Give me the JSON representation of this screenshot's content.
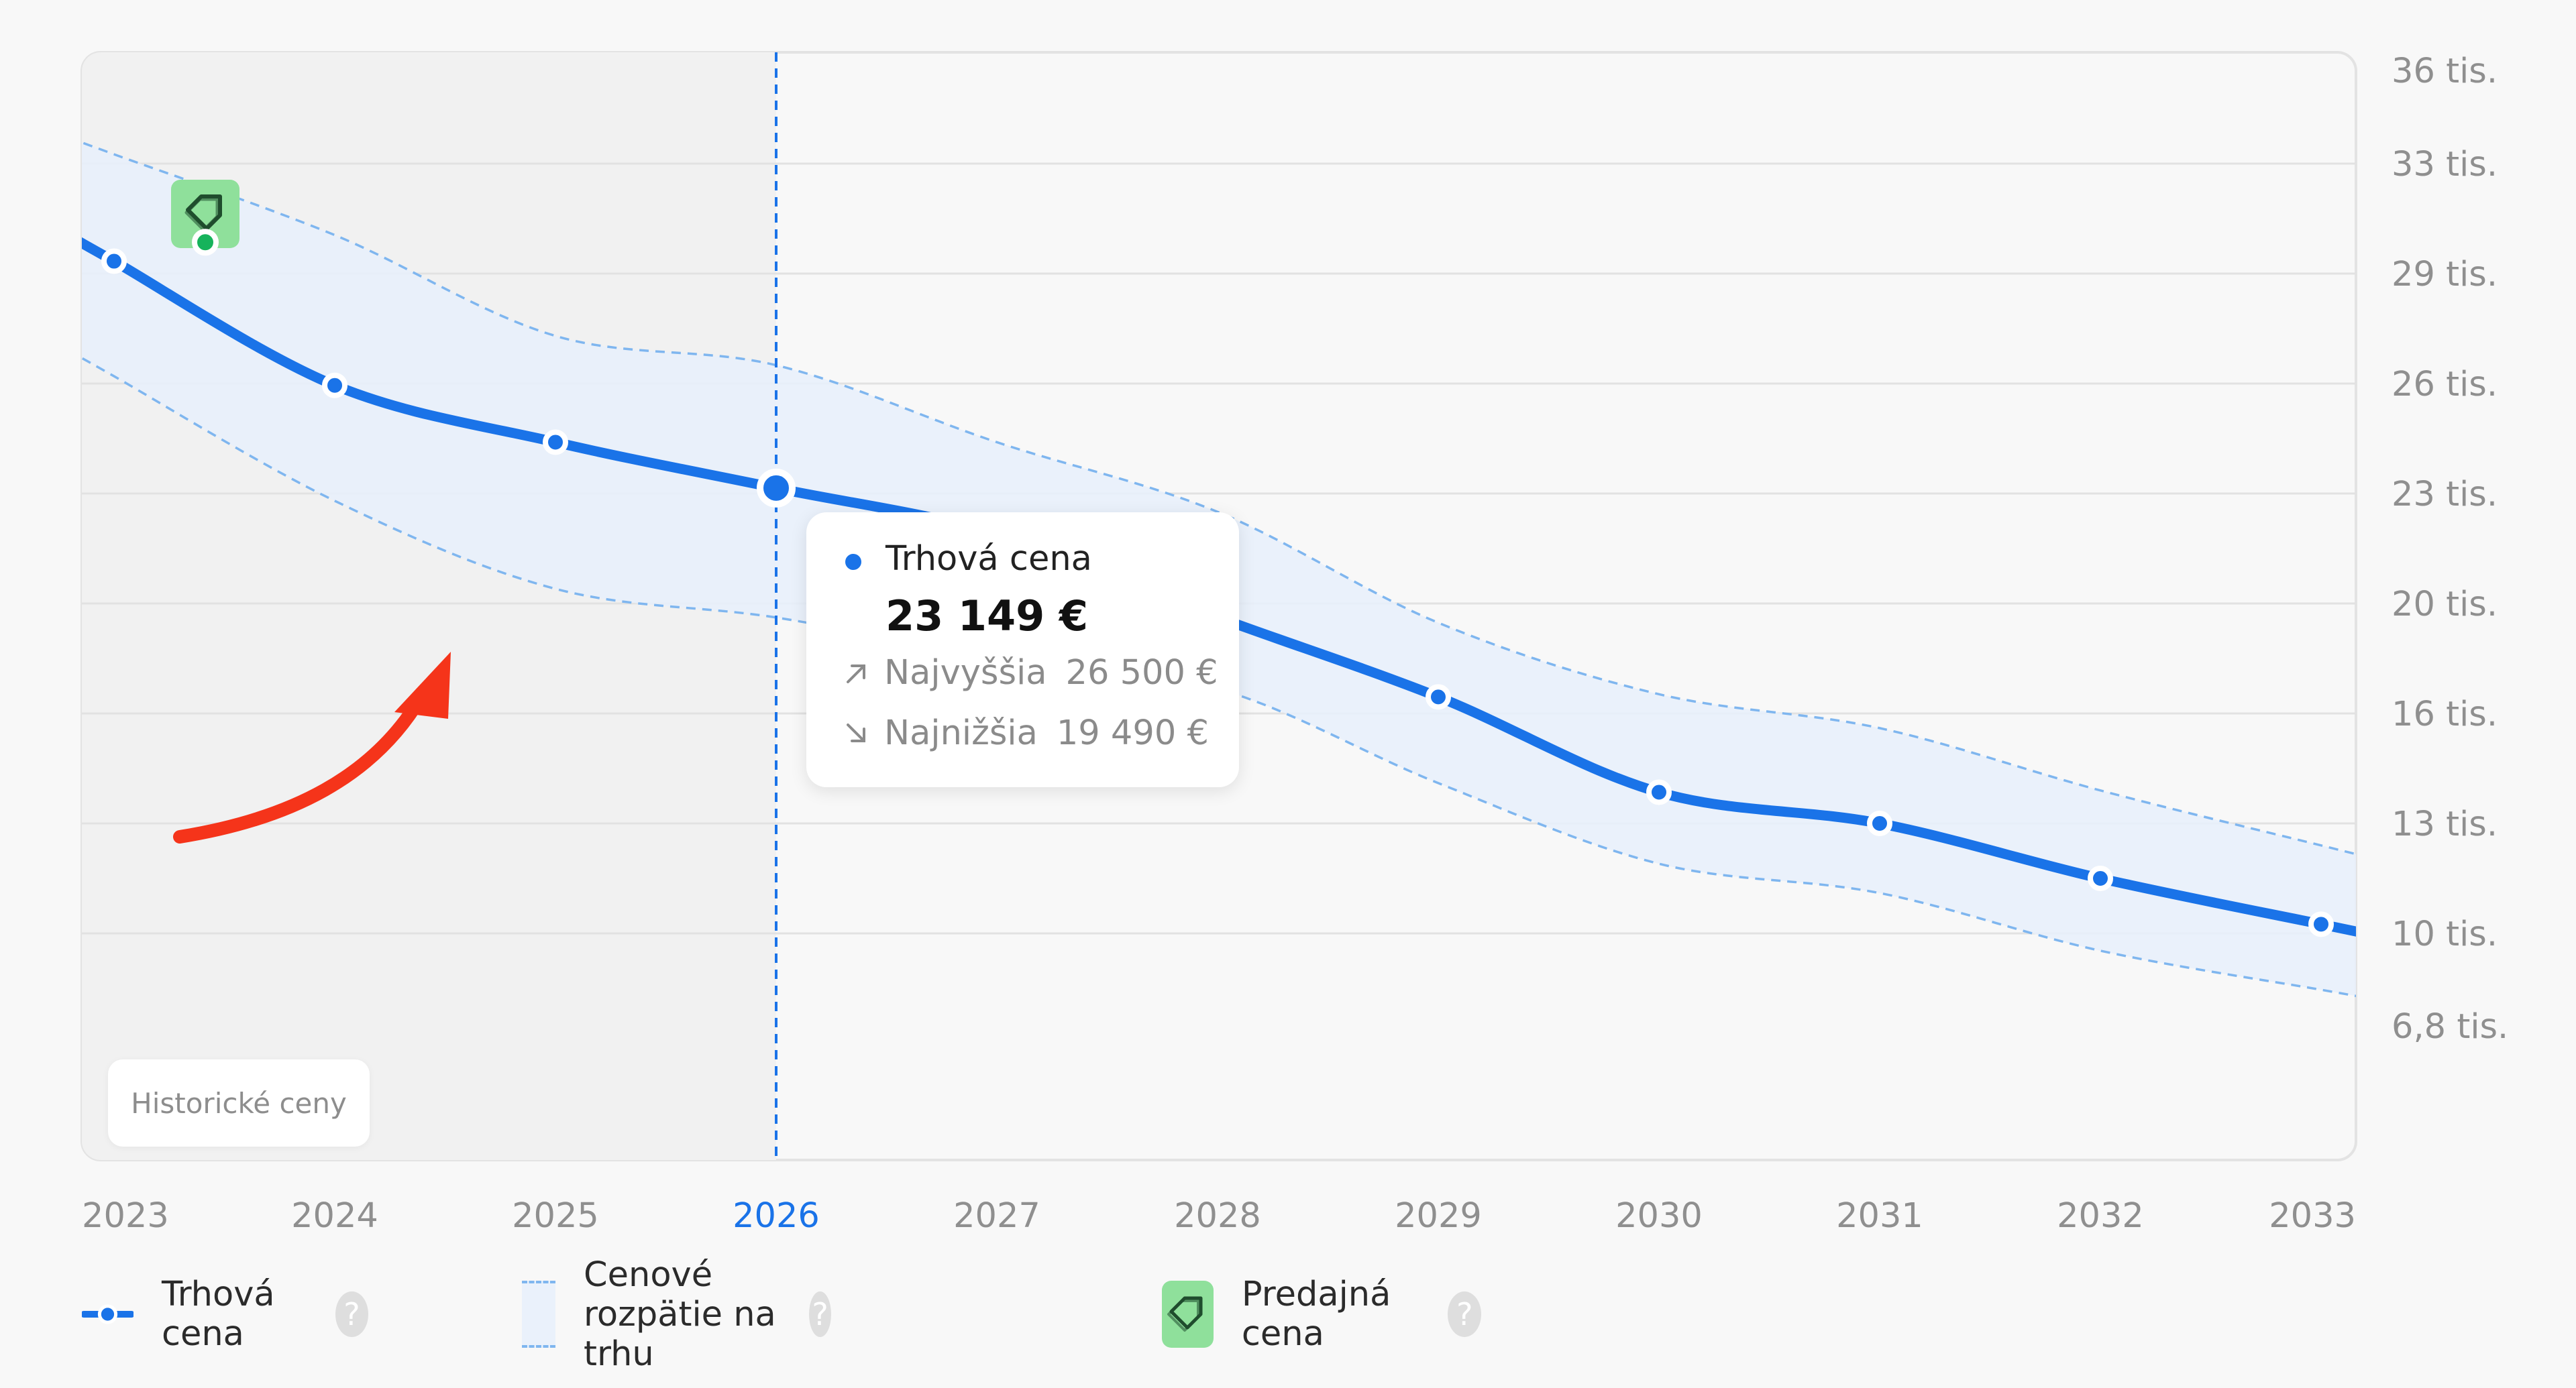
{
  "chart_data": {
    "type": "line",
    "x": [
      "2023",
      "2024",
      "2025",
      "2026",
      "2027",
      "2028",
      "2029",
      "2030",
      "2031",
      "2032",
      "2033"
    ],
    "y_ticks": [
      "36 tis.",
      "33 tis.",
      "29 tis.",
      "26 tis.",
      "23 tis.",
      "20 tis.",
      "16 tis.",
      "13 tis.",
      "10 tis.",
      "6,8 tis."
    ],
    "series": [
      {
        "name": "Trhová cena",
        "values": [
          29450,
          25950,
          24400,
          23149,
          21900,
          19500,
          16600,
          13850,
          13000,
          11500,
          10250
        ]
      },
      {
        "name": "Cenové rozpätie na trhu",
        "upper": [
          33300,
          30400,
          27300,
          26500,
          24400,
          22500,
          19300,
          16700,
          15600,
          13900,
          12400
        ],
        "lower": [
          26200,
          22800,
          20400,
          19490,
          18000,
          16900,
          14100,
          11900,
          11100,
          9400,
          8050
        ]
      }
    ],
    "sale_price": {
      "x": "2023",
      "value": 29700,
      "label": "Predajná cena"
    },
    "highlight_year": "2026",
    "historical_region": [
      "2023",
      "2026"
    ],
    "ylim": [
      6800,
      36000
    ],
    "grid": true,
    "y_axis_side": "right",
    "legend_position": "bottom"
  },
  "annotations": {
    "historical_label": "Historické ceny"
  },
  "tooltip": {
    "title": "Trhová cena",
    "value": "23 149 €",
    "high_label": "Najvyššia",
    "high_value": "26 500 €",
    "low_label": "Najnižšia",
    "low_value": "19 490 €"
  },
  "legend": {
    "market_price": "Trhová cena",
    "range": "Cenové rozpätie na trhu",
    "sale_price": "Predajná cena",
    "help": "?"
  },
  "colors": {
    "line": "#1a73e8",
    "band_fill": "#e8f0fb",
    "band_border": "#7fb6ef",
    "sale_marker": "#8fe09b",
    "sale_dot": "#16b35b",
    "arrow": "#f5341a",
    "highlight": "#1a73e8"
  }
}
